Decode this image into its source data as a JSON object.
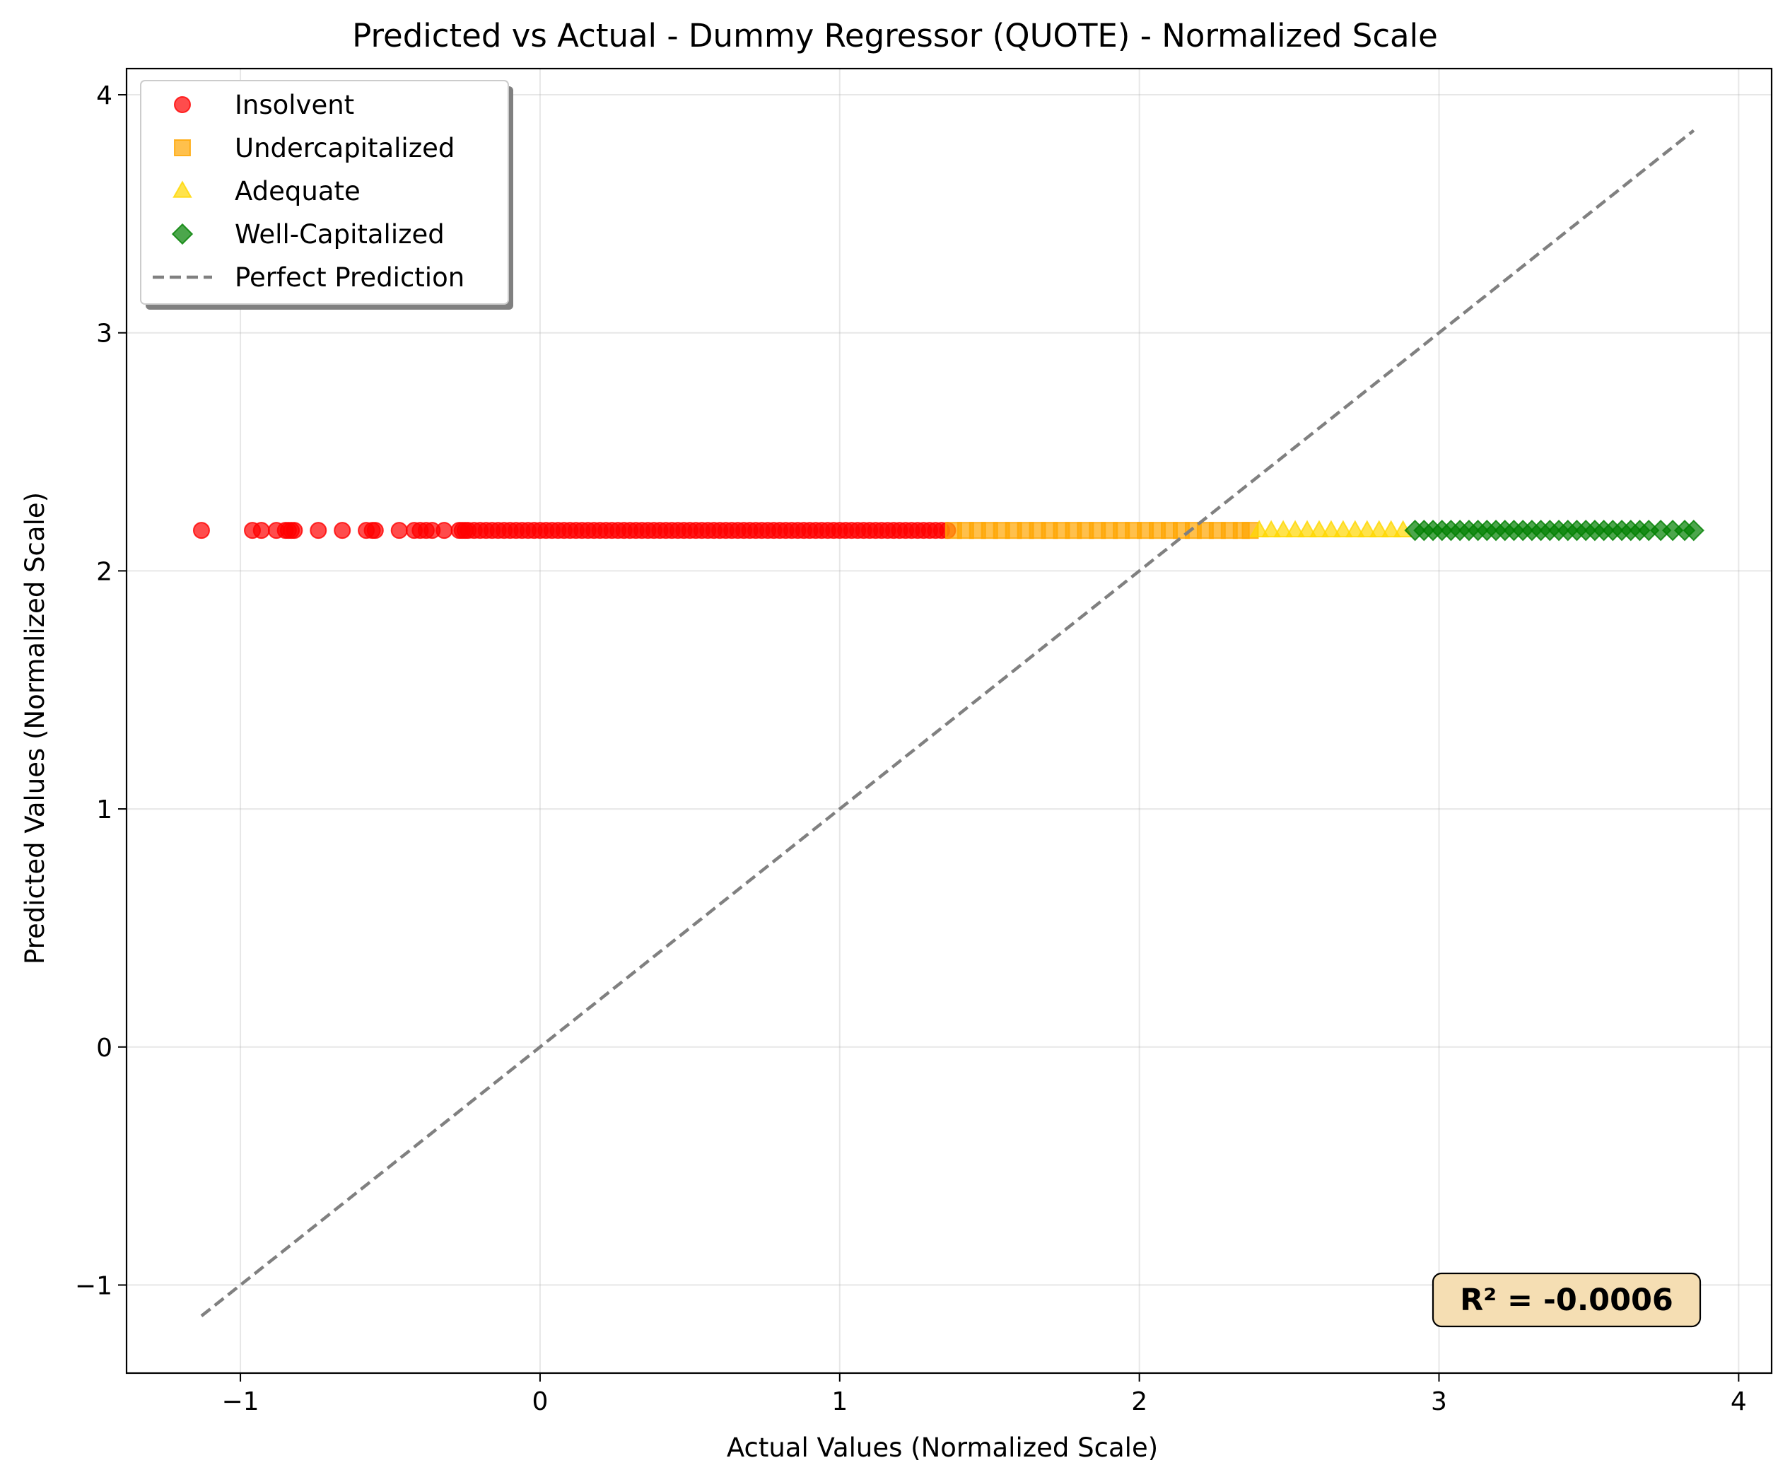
{
  "chart_data": {
    "type": "scatter",
    "title": "Predicted vs Actual - Dummy Regressor (QUOTE) - Normalized Scale",
    "xlabel": "Actual Values (Normalized Scale)",
    "ylabel": "Predicted Values (Normalized Scale)",
    "xlim": [
      -1.38,
      4.11
    ],
    "ylim": [
      -1.37,
      4.11
    ],
    "xticks": [
      -1,
      0,
      1,
      2,
      3,
      4
    ],
    "yticks": [
      -1,
      0,
      1,
      2,
      3,
      4
    ],
    "xtick_labels": [
      "−1",
      "0",
      "1",
      "2",
      "3",
      "4"
    ],
    "ytick_labels": [
      "−1",
      "0",
      "1",
      "2",
      "3",
      "4"
    ],
    "grid": true,
    "legend_position": "top-left",
    "predicted_constant": 2.17,
    "series": [
      {
        "name": "Insolvent",
        "marker": "circle",
        "color": "#ff0000",
        "x": [
          -1.13,
          -0.96,
          -0.93,
          -0.88,
          -0.85,
          -0.84,
          -0.83,
          -0.82,
          -0.74,
          -0.66,
          -0.58,
          -0.56,
          -0.55,
          -0.47,
          -0.42,
          -0.4,
          -0.38,
          -0.36,
          -0.32,
          -0.27,
          -0.26,
          -0.25,
          -0.24,
          -0.22,
          -0.2,
          -0.18,
          -0.16,
          -0.14,
          -0.12,
          -0.1,
          -0.08,
          -0.06,
          -0.04,
          -0.02,
          0.0,
          0.02,
          0.04,
          0.06,
          0.08,
          0.1,
          0.12,
          0.14,
          0.16,
          0.18,
          0.2,
          0.22,
          0.24,
          0.26,
          0.28,
          0.3,
          0.32,
          0.34,
          0.36,
          0.38,
          0.4,
          0.42,
          0.44,
          0.46,
          0.48,
          0.5,
          0.52,
          0.54,
          0.56,
          0.58,
          0.6,
          0.62,
          0.64,
          0.66,
          0.68,
          0.7,
          0.72,
          0.74,
          0.76,
          0.78,
          0.8,
          0.82,
          0.84,
          0.86,
          0.88,
          0.9,
          0.92,
          0.94,
          0.96,
          0.98,
          1.0,
          1.02,
          1.04,
          1.06,
          1.08,
          1.1,
          1.12,
          1.14,
          1.16,
          1.18,
          1.2,
          1.22,
          1.24,
          1.26,
          1.28,
          1.3,
          1.32,
          1.34,
          1.36
        ]
      },
      {
        "name": "Undercapitalized",
        "marker": "square",
        "color": "#ffa500",
        "x": [
          1.38,
          1.42,
          1.46,
          1.5,
          1.54,
          1.58,
          1.62,
          1.66,
          1.7,
          1.74,
          1.78,
          1.82,
          1.86,
          1.9,
          1.94,
          1.98,
          2.02,
          2.06,
          2.1,
          2.14,
          2.18,
          2.22,
          2.26,
          2.3,
          2.34,
          2.37
        ]
      },
      {
        "name": "Adequate",
        "marker": "triangle",
        "color": "#ffd700",
        "x": [
          2.4,
          2.44,
          2.48,
          2.52,
          2.56,
          2.6,
          2.64,
          2.68,
          2.72,
          2.76,
          2.8,
          2.84,
          2.88
        ]
      },
      {
        "name": "Well-Capitalized",
        "marker": "diamond",
        "color": "#008000",
        "x": [
          2.92,
          2.95,
          2.98,
          3.01,
          3.04,
          3.07,
          3.1,
          3.13,
          3.16,
          3.19,
          3.22,
          3.25,
          3.28,
          3.31,
          3.34,
          3.37,
          3.4,
          3.43,
          3.46,
          3.49,
          3.52,
          3.55,
          3.58,
          3.61,
          3.64,
          3.67,
          3.7,
          3.74,
          3.78,
          3.82,
          3.85
        ]
      }
    ],
    "reference_line": {
      "name": "Perfect Prediction",
      "x": [
        -1.13,
        3.85
      ],
      "y": [
        -1.13,
        3.85
      ],
      "color": "#808080"
    },
    "annotation": {
      "text": "R² = -0.0006",
      "position": "bottom-right",
      "background": "#f5deb3"
    }
  }
}
